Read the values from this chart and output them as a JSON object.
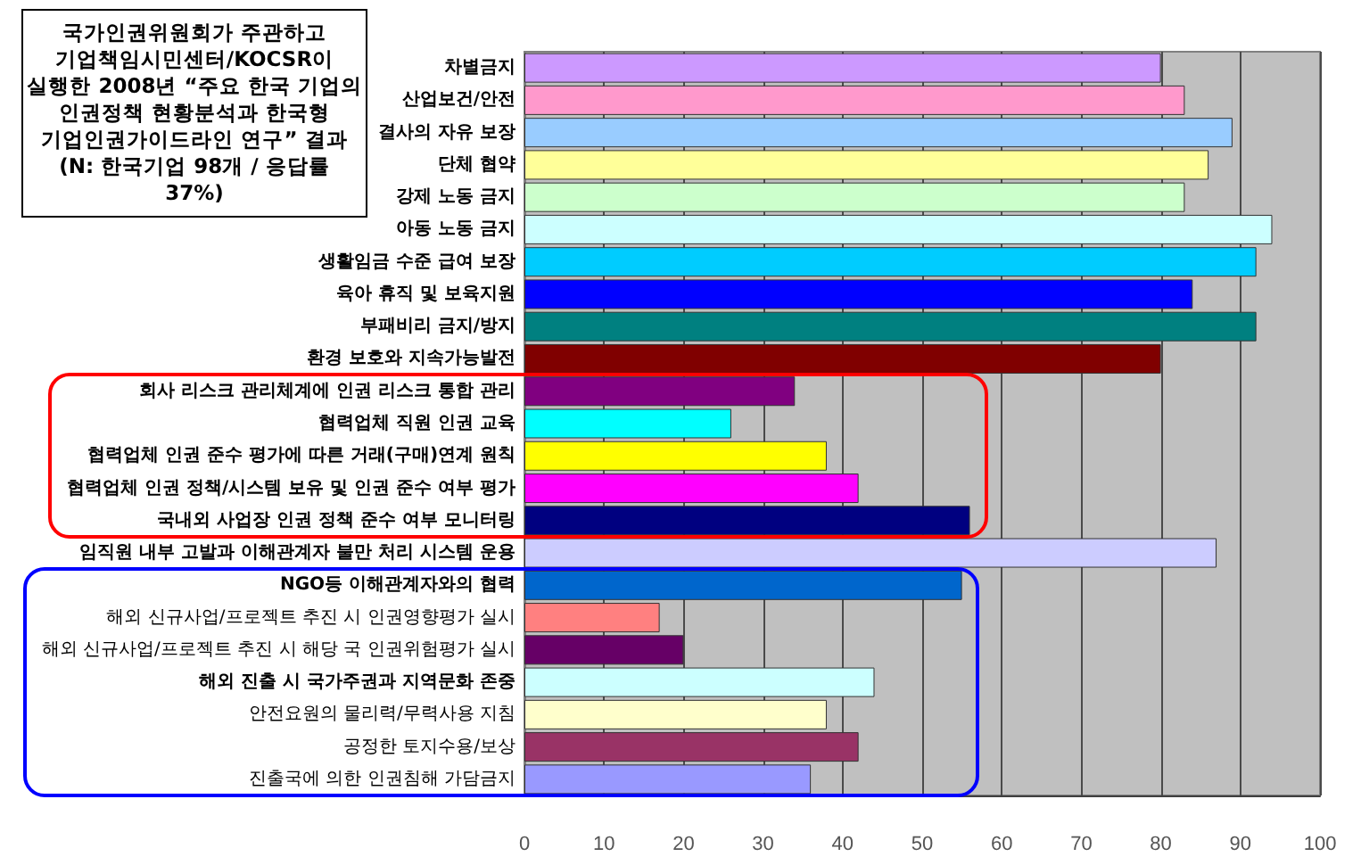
{
  "chart_data": {
    "type": "bar",
    "orientation": "horizontal",
    "title": "국가인권위원회가 주관하고 기업책임시민센터/KOCSR이 실행한 2008년 “주요 한국 기업의 인권정책 현황분석과 한국형 기업인권가이드라인 연구” 결과 (N: 한국기업 98개 / 응답률 37%)",
    "categories": [
      "차별금지",
      "산업보건/안전",
      "결사의 자유 보장",
      "단체 협약",
      "강제 노동 금지",
      "아동 노동 금지",
      "생활임금 수준 급여 보장",
      "육아 휴직 및 보육지원",
      "부패비리 금지/방지",
      "환경 보호와 지속가능발전",
      "회사 리스크 관리체계에 인권 리스크 통합 관리",
      "협력업체 직원 인권 교육",
      "협력업체 인권 준수 평가에 따른 거래(구매)연계 원칙",
      "협력업체 인권 정책/시스템 보유 및 인권 준수 여부 평가",
      "국내외 사업장 인권 정책 준수 여부 모니터링",
      "임직원 내부 고발과 이해관계자 불만 처리 시스템 운용",
      "NGO등 이해관계자와의 협력",
      "해외 신규사업/프로젝트 추진 시 인권영향평가 실시",
      "해외 신규사업/프로젝트 추진 시 해당 국 인권위험평가 실시",
      "해외 진출 시 국가주권과 지역문화 존중",
      "안전요원의 물리력/무력사용 지침",
      "공정한 토지수용/보상",
      "진출국에 의한 인권침해 가담금지"
    ],
    "values": [
      80,
      83,
      89,
      86,
      83,
      94,
      92,
      84,
      92,
      80,
      34,
      26,
      38,
      42,
      56,
      87,
      55,
      17,
      20,
      44,
      38,
      42,
      36
    ],
    "colors": [
      "#cc99ff",
      "#ff99cc",
      "#99ccff",
      "#ffff99",
      "#ccffcc",
      "#ccffff",
      "#00ccff",
      "#0000ff",
      "#008080",
      "#800000",
      "#800080",
      "#00ffff",
      "#ffff00",
      "#ff00ff",
      "#000080",
      "#ccccff",
      "#0066cc",
      "#ff8080",
      "#660066",
      "#ccffff",
      "#ffffcc",
      "#993366",
      "#9999ff"
    ],
    "xlim": [
      0,
      100
    ],
    "xticks": [
      0,
      10,
      20,
      30,
      40,
      50,
      60,
      70,
      80,
      90,
      100
    ],
    "grid": "x"
  }
}
